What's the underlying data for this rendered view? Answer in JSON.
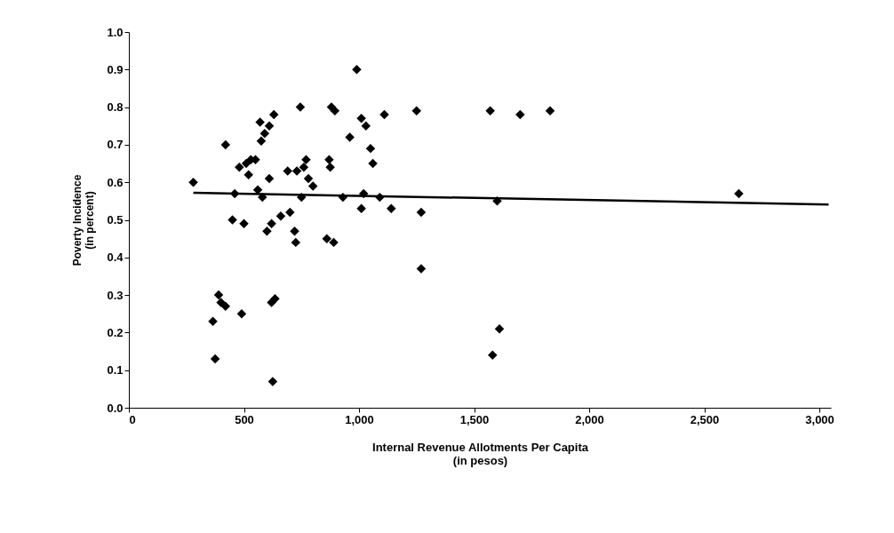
{
  "chart_data": {
    "type": "scatter",
    "xlabel": "Internal Revenue Allotments Per Capita\n(in pesos)",
    "ylabel": "Poverty Incidence\n(in percent)",
    "xlim": [
      0,
      3050
    ],
    "xticks": [
      0,
      500,
      {
        "value": 1000,
        "label": "1,000"
      },
      {
        "value": 1500,
        "label": "1,500"
      },
      {
        "value": 2000,
        "label": "2,000"
      },
      {
        "value": 2500,
        "label": "2,500"
      },
      {
        "value": 3000,
        "label": "3,000"
      }
    ],
    "ylim": [
      0,
      1.0
    ],
    "yticks": [
      {
        "value": 0,
        "label": "0.0"
      },
      0.1,
      0.2,
      0.3,
      0.4,
      0.5,
      0.6,
      0.7,
      0.8,
      0.9,
      {
        "value": 1,
        "label": "1.0"
      }
    ],
    "grid": false,
    "series": [
      {
        "color": "#000000",
        "marker": "diamond",
        "x": [
          280,
          365,
          375,
          390,
          400,
          420,
          420,
          450,
          460,
          480,
          490,
          500,
          510,
          520,
          530,
          550,
          560,
          570,
          575,
          580,
          590,
          600,
          610,
          610,
          620,
          620,
          625,
          630,
          635,
          660,
          690,
          700,
          720,
          725,
          730,
          745,
          750,
          760,
          770,
          780,
          800,
          860,
          870,
          875,
          880,
          890,
          895,
          930,
          960,
          990,
          1010,
          1010,
          1020,
          1030,
          1050,
          1060,
          1090,
          1110,
          1140,
          1250,
          1270,
          1270,
          1570,
          1580,
          1600,
          1610,
          1700,
          1830,
          2650
        ],
        "values": [
          0.6,
          0.23,
          0.13,
          0.3,
          0.28,
          0.27,
          0.7,
          0.5,
          0.57,
          0.64,
          0.25,
          0.49,
          0.65,
          0.62,
          0.66,
          0.66,
          0.58,
          0.76,
          0.71,
          0.56,
          0.73,
          0.47,
          0.61,
          0.75,
          0.49,
          0.28,
          0.07,
          0.78,
          0.29,
          0.51,
          0.63,
          0.52,
          0.47,
          0.44,
          0.63,
          0.8,
          0.56,
          0.64,
          0.66,
          0.61,
          0.59,
          0.45,
          0.66,
          0.64,
          0.8,
          0.44,
          0.79,
          0.56,
          0.72,
          0.9,
          0.77,
          0.53,
          0.57,
          0.75,
          0.69,
          0.65,
          0.56,
          0.78,
          0.53,
          0.79,
          0.52,
          0.37,
          0.79,
          0.14,
          0.55,
          0.21,
          0.78,
          0.79,
          0.57
        ]
      },
      {
        "type": "line",
        "marker": "none",
        "color": "#000000",
        "x": [
          280,
          3040
        ],
        "values": [
          0.572,
          0.541
        ]
      }
    ]
  }
}
